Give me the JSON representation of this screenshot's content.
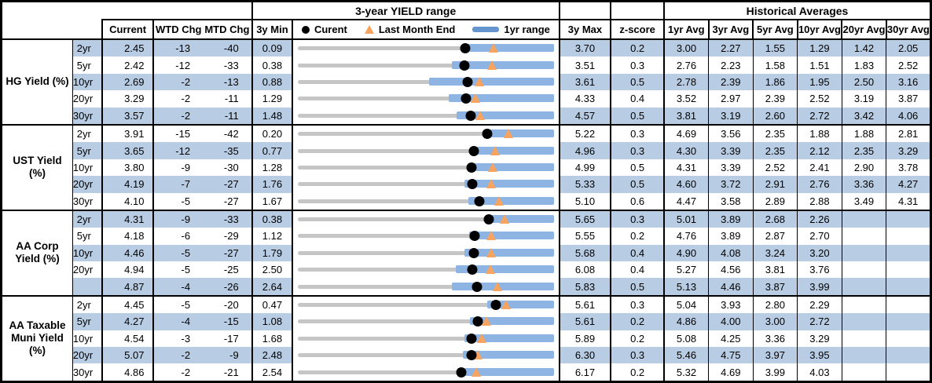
{
  "header": {
    "yield_range_title": "3-year YIELD range",
    "historical_title": "Historical Averages"
  },
  "columns": {
    "current": "Current",
    "wtd": "WTD Chg",
    "mtd": "MTD Chg",
    "min": "3y Min",
    "max": "3y Max",
    "z": "z-score",
    "avgs": [
      "1yr Avg",
      "3yr Avg",
      "5yr Avg",
      "10yr Avg",
      "20yr Avg",
      "30yr Avg"
    ]
  },
  "legend": {
    "current": "Curent",
    "last_month_end": "Last Month End",
    "range_1yr": "1yr range"
  },
  "colors": {
    "stripe": "#B8CCE4",
    "range_bar": "#8DB4E2",
    "legend_bar": "#6495CE",
    "marker_triangle": "#F6A45F",
    "marker_dot": "#000000",
    "track": "#C6C6C6"
  },
  "chart_data": {
    "type": "table",
    "description": "Bond yield summary: current levels, WTD/MTD changes (bp), 3-year min/max with inline 1yr-range bullet charts (current dot, last-month-end triangle), z-scores and historical averages",
    "groups": [
      {
        "label": "HG Yield (%)",
        "rows": [
          {
            "tenor": "2yr",
            "current": "2.45",
            "wtd_chg": "-13",
            "mtd_chg": "-40",
            "min_3y": "0.09",
            "max_3y": "3.70",
            "z_score": "0.2",
            "averages": [
              "3.00",
              "2.27",
              "1.55",
              "1.29",
              "1.42",
              "2.05"
            ],
            "range_plot": {
              "min": 0.09,
              "max": 3.7,
              "current": 2.45,
              "last_month_end": 2.85,
              "range_1yr": [
                2.43,
                3.7
              ]
            }
          },
          {
            "tenor": "5yr",
            "current": "2.42",
            "wtd_chg": "-12",
            "mtd_chg": "-33",
            "min_3y": "0.38",
            "max_3y": "3.51",
            "z_score": "0.3",
            "averages": [
              "2.76",
              "2.23",
              "1.58",
              "1.51",
              "1.83",
              "2.52"
            ],
            "range_plot": {
              "min": 0.38,
              "max": 3.51,
              "current": 2.42,
              "last_month_end": 2.75,
              "range_1yr": [
                2.26,
                3.51
              ]
            }
          },
          {
            "tenor": "10yr",
            "current": "2.69",
            "wtd_chg": "-2",
            "mtd_chg": "-13",
            "min_3y": "0.88",
            "max_3y": "3.61",
            "z_score": "0.5",
            "averages": [
              "2.78",
              "2.39",
              "1.86",
              "1.95",
              "2.50",
              "3.16"
            ],
            "range_plot": {
              "min": 0.88,
              "max": 3.61,
              "current": 2.69,
              "last_month_end": 2.82,
              "range_1yr": [
                2.28,
                3.61
              ]
            }
          },
          {
            "tenor": "20yr",
            "current": "3.29",
            "wtd_chg": "-2",
            "mtd_chg": "-11",
            "min_3y": "1.29",
            "max_3y": "4.33",
            "z_score": "0.4",
            "averages": [
              "3.52",
              "2.97",
              "2.39",
              "2.52",
              "3.19",
              "3.87"
            ],
            "range_plot": {
              "min": 1.29,
              "max": 4.33,
              "current": 3.29,
              "last_month_end": 3.4,
              "range_1yr": [
                3.08,
                4.33
              ]
            }
          },
          {
            "tenor": "30yr",
            "current": "3.57",
            "wtd_chg": "-2",
            "mtd_chg": "-11",
            "min_3y": "1.48",
            "max_3y": "4.57",
            "z_score": "0.5",
            "averages": [
              "3.81",
              "3.19",
              "2.60",
              "2.72",
              "3.42",
              "4.06"
            ],
            "range_plot": {
              "min": 1.48,
              "max": 4.57,
              "current": 3.57,
              "last_month_end": 3.68,
              "range_1yr": [
                3.4,
                4.57
              ]
            }
          }
        ]
      },
      {
        "label": "UST Yield (%)",
        "rows": [
          {
            "tenor": "2yr",
            "current": "3.91",
            "wtd_chg": "-15",
            "mtd_chg": "-42",
            "min_3y": "0.20",
            "max_3y": "5.22",
            "z_score": "0.3",
            "averages": [
              "4.69",
              "3.56",
              "2.35",
              "1.88",
              "1.88",
              "2.81"
            ],
            "range_plot": {
              "min": 0.2,
              "max": 5.22,
              "current": 3.91,
              "last_month_end": 4.33,
              "range_1yr": [
                3.84,
                5.22
              ]
            }
          },
          {
            "tenor": "5yr",
            "current": "3.65",
            "wtd_chg": "-12",
            "mtd_chg": "-35",
            "min_3y": "0.77",
            "max_3y": "4.96",
            "z_score": "0.3",
            "averages": [
              "4.30",
              "3.39",
              "2.35",
              "2.12",
              "2.35",
              "3.29"
            ],
            "range_plot": {
              "min": 0.77,
              "max": 4.96,
              "current": 3.65,
              "last_month_end": 4.0,
              "range_1yr": [
                3.59,
                4.96
              ]
            }
          },
          {
            "tenor": "10yr",
            "current": "3.80",
            "wtd_chg": "-9",
            "mtd_chg": "-30",
            "min_3y": "1.28",
            "max_3y": "4.99",
            "z_score": "0.5",
            "averages": [
              "4.31",
              "3.39",
              "2.52",
              "2.41",
              "2.90",
              "3.78"
            ],
            "range_plot": {
              "min": 1.28,
              "max": 4.99,
              "current": 3.8,
              "last_month_end": 4.1,
              "range_1yr": [
                3.75,
                4.99
              ]
            }
          },
          {
            "tenor": "20yr",
            "current": "4.19",
            "wtd_chg": "-7",
            "mtd_chg": "-27",
            "min_3y": "1.76",
            "max_3y": "5.33",
            "z_score": "0.5",
            "averages": [
              "4.60",
              "3.72",
              "2.91",
              "2.76",
              "3.36",
              "4.27"
            ],
            "range_plot": {
              "min": 1.76,
              "max": 5.33,
              "current": 4.19,
              "last_month_end": 4.46,
              "range_1yr": [
                4.08,
                5.33
              ]
            }
          },
          {
            "tenor": "30yr",
            "current": "4.10",
            "wtd_chg": "-5",
            "mtd_chg": "-27",
            "min_3y": "1.67",
            "max_3y": "5.10",
            "z_score": "0.6",
            "averages": [
              "4.47",
              "3.58",
              "2.89",
              "2.88",
              "3.49",
              "4.31"
            ],
            "range_plot": {
              "min": 1.67,
              "max": 5.1,
              "current": 4.1,
              "last_month_end": 4.37,
              "range_1yr": [
                3.95,
                5.1
              ]
            }
          }
        ]
      },
      {
        "label": "AA Corp Yield (%)",
        "rows": [
          {
            "tenor": "2yr",
            "current": "4.31",
            "wtd_chg": "-9",
            "mtd_chg": "-33",
            "min_3y": "0.38",
            "max_3y": "5.65",
            "z_score": "0.3",
            "averages": [
              "5.01",
              "3.89",
              "2.68",
              "2.26",
              "",
              ""
            ],
            "range_plot": {
              "min": 0.38,
              "max": 5.65,
              "current": 4.31,
              "last_month_end": 4.64,
              "range_1yr": [
                4.23,
                5.65
              ]
            }
          },
          {
            "tenor": "5yr",
            "current": "4.18",
            "wtd_chg": "-6",
            "mtd_chg": "-29",
            "min_3y": "1.12",
            "max_3y": "5.55",
            "z_score": "0.2",
            "averages": [
              "4.76",
              "3.89",
              "2.87",
              "2.70",
              "",
              ""
            ],
            "range_plot": {
              "min": 1.12,
              "max": 5.55,
              "current": 4.18,
              "last_month_end": 4.47,
              "range_1yr": [
                4.08,
                5.55
              ]
            }
          },
          {
            "tenor": "10yr",
            "current": "4.46",
            "wtd_chg": "-5",
            "mtd_chg": "-27",
            "min_3y": "1.79",
            "max_3y": "5.68",
            "z_score": "0.4",
            "averages": [
              "4.90",
              "4.08",
              "3.24",
              "3.20",
              "",
              ""
            ],
            "range_plot": {
              "min": 1.79,
              "max": 5.68,
              "current": 4.46,
              "last_month_end": 4.73,
              "range_1yr": [
                4.32,
                5.68
              ]
            }
          },
          {
            "tenor": "20yr",
            "current": "4.94",
            "wtd_chg": "-5",
            "mtd_chg": "-25",
            "min_3y": "2.50",
            "max_3y": "6.08",
            "z_score": "0.4",
            "averages": [
              "5.27",
              "4.56",
              "3.81",
              "3.76",
              "",
              ""
            ],
            "range_plot": {
              "min": 2.5,
              "max": 6.08,
              "current": 4.94,
              "last_month_end": 5.19,
              "range_1yr": [
                4.71,
                6.08
              ]
            }
          },
          {
            "tenor": "",
            "current": "4.87",
            "wtd_chg": "-4",
            "mtd_chg": "-26",
            "min_3y": "2.64",
            "max_3y": "5.83",
            "z_score": "0.5",
            "averages": [
              "5.13",
              "4.46",
              "3.87",
              "3.99",
              "",
              ""
            ],
            "range_plot": {
              "min": 2.64,
              "max": 5.83,
              "current": 4.87,
              "last_month_end": 5.13,
              "range_1yr": [
                4.56,
                5.83
              ]
            }
          }
        ]
      },
      {
        "label": "AA Taxable Muni Yield (%)",
        "rows": [
          {
            "tenor": "2yr",
            "current": "4.45",
            "wtd_chg": "-5",
            "mtd_chg": "-20",
            "min_3y": "0.47",
            "max_3y": "5.61",
            "z_score": "0.3",
            "averages": [
              "5.04",
              "3.93",
              "2.80",
              "2.29",
              "",
              ""
            ],
            "range_plot": {
              "min": 0.47,
              "max": 5.61,
              "current": 4.45,
              "last_month_end": 4.65,
              "range_1yr": [
                4.27,
                5.61
              ]
            }
          },
          {
            "tenor": "5yr",
            "current": "4.27",
            "wtd_chg": "-4",
            "mtd_chg": "-15",
            "min_3y": "1.08",
            "max_3y": "5.61",
            "z_score": "0.2",
            "averages": [
              "4.86",
              "4.00",
              "3.00",
              "2.72",
              "",
              ""
            ],
            "range_plot": {
              "min": 1.08,
              "max": 5.61,
              "current": 4.27,
              "last_month_end": 4.42,
              "range_1yr": [
                4.13,
                5.61
              ]
            }
          },
          {
            "tenor": "10yr",
            "current": "4.54",
            "wtd_chg": "-3",
            "mtd_chg": "-17",
            "min_3y": "1.68",
            "max_3y": "5.89",
            "z_score": "0.2",
            "averages": [
              "5.08",
              "4.25",
              "3.36",
              "3.29",
              "",
              ""
            ],
            "range_plot": {
              "min": 1.68,
              "max": 5.89,
              "current": 4.54,
              "last_month_end": 4.71,
              "range_1yr": [
                4.42,
                5.89
              ]
            }
          },
          {
            "tenor": "20yr",
            "current": "5.07",
            "wtd_chg": "-2",
            "mtd_chg": "-9",
            "min_3y": "2.48",
            "max_3y": "6.30",
            "z_score": "0.3",
            "averages": [
              "5.46",
              "4.75",
              "3.97",
              "3.95",
              "",
              ""
            ],
            "range_plot": {
              "min": 2.48,
              "max": 6.3,
              "current": 5.07,
              "last_month_end": 5.16,
              "range_1yr": [
                4.94,
                6.3
              ]
            }
          },
          {
            "tenor": "30yr",
            "current": "4.86",
            "wtd_chg": "-2",
            "mtd_chg": "-21",
            "min_3y": "2.54",
            "max_3y": "6.17",
            "z_score": "0.2",
            "averages": [
              "5.32",
              "4.69",
              "3.99",
              "4.03",
              "",
              ""
            ],
            "range_plot": {
              "min": 2.54,
              "max": 6.17,
              "current": 4.86,
              "last_month_end": 5.07,
              "range_1yr": [
                4.8,
                6.17
              ]
            }
          }
        ]
      }
    ]
  }
}
